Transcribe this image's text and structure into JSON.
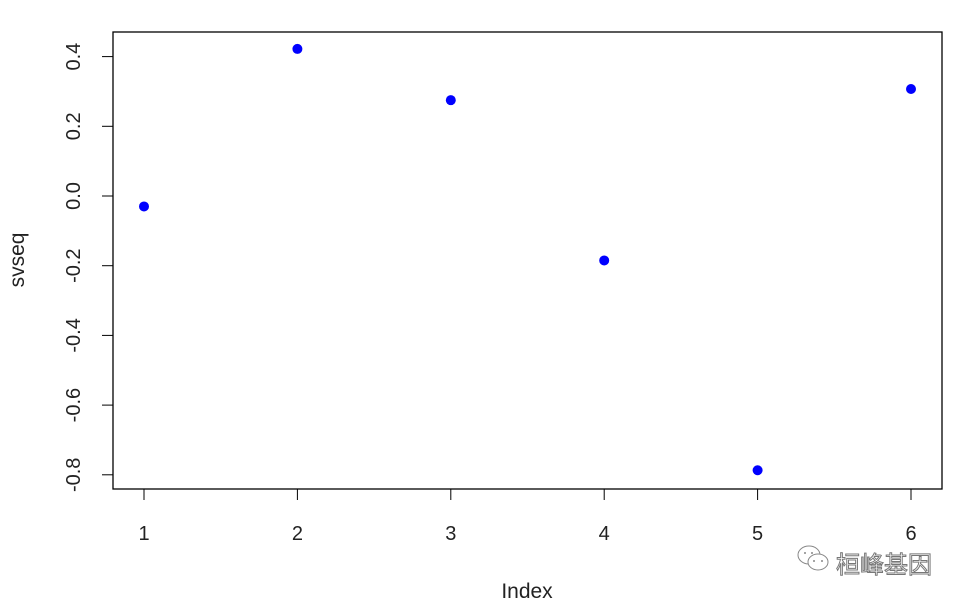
{
  "chart_data": {
    "type": "scatter",
    "title": "",
    "xlabel": "Index",
    "ylabel": "svseq",
    "x": [
      1,
      2,
      3,
      4,
      5,
      6
    ],
    "y": [
      -0.03,
      0.422,
      0.275,
      -0.185,
      -0.787,
      0.307
    ],
    "xlim": [
      0.8,
      6.2
    ],
    "ylim": [
      -0.86,
      0.45
    ],
    "xticks": [
      "1",
      "2",
      "3",
      "4",
      "5",
      "6"
    ],
    "yticks": [
      "0.4",
      "0.2",
      "0.0",
      "-0.2",
      "-0.4",
      "-0.6",
      "-0.8"
    ],
    "point_color": "#0000ff",
    "grid": false,
    "legend": "none"
  },
  "watermark": {
    "text": "桓峰基因",
    "icon": "wechat-icon"
  }
}
